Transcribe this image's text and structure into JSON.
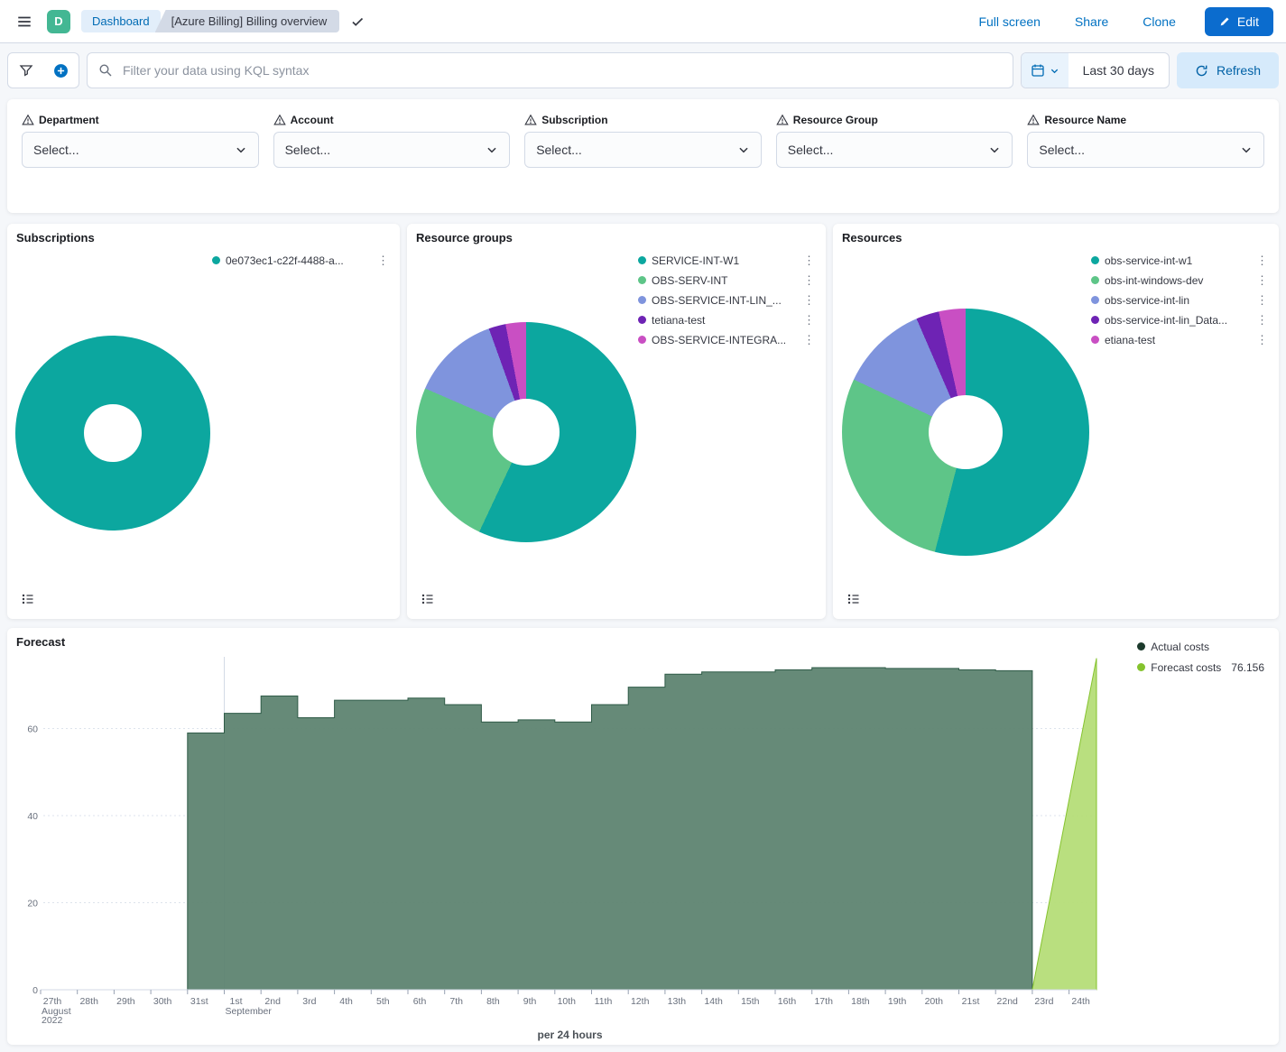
{
  "colors": {
    "accent_blue": "#0071c2",
    "edit_button": "#0b6cce",
    "space_avatar": "#43b793"
  },
  "header": {
    "space_initial": "D",
    "breadcrumb_dashboard": "Dashboard",
    "breadcrumb_page": "[Azure Billing] Billing overview",
    "full_screen": "Full screen",
    "share": "Share",
    "clone": "Clone",
    "edit": "Edit"
  },
  "toolbar": {
    "search_placeholder": "Filter your data using KQL syntax",
    "time_range": "Last 30 days",
    "refresh_label": "Refresh"
  },
  "filters": {
    "items": [
      {
        "label": "Department",
        "placeholder": "Select..."
      },
      {
        "label": "Account",
        "placeholder": "Select..."
      },
      {
        "label": "Subscription",
        "placeholder": "Select..."
      },
      {
        "label": "Resource Group",
        "placeholder": "Select..."
      },
      {
        "label": "Resource Name",
        "placeholder": "Select..."
      }
    ]
  },
  "chart_data": [
    {
      "id": "subscriptions",
      "type": "pie",
      "title": "Subscriptions",
      "unit": "percent",
      "slices": [
        {
          "label": "0e073ec1-c22f-4488-a...",
          "value": 100,
          "color": "#0ca79f"
        }
      ]
    },
    {
      "id": "resource_groups",
      "type": "pie",
      "title": "Resource groups",
      "unit": "percent",
      "slices": [
        {
          "label": "SERVICE-INT-W1",
          "value": 57,
          "color": "#0ca79f"
        },
        {
          "label": "OBS-SERV-INT",
          "value": 24.5,
          "color": "#5ec588"
        },
        {
          "label": "OBS-SERVICE-INT-LIN_...",
          "value": 13,
          "color": "#7f94dd"
        },
        {
          "label": "tetiana-test",
          "value": 2.5,
          "color": "#6e23b4"
        },
        {
          "label": "OBS-SERVICE-INTEGRA...",
          "value": 3,
          "color": "#c94fc3"
        }
      ]
    },
    {
      "id": "resources",
      "type": "pie",
      "title": "Resources",
      "unit": "percent",
      "slices": [
        {
          "label": "obs-service-int-w1",
          "value": 54,
          "color": "#0ca79f"
        },
        {
          "label": "obs-int-windows-dev",
          "value": 28,
          "color": "#5ec588"
        },
        {
          "label": "obs-service-int-lin",
          "value": 11.5,
          "color": "#7f94dd"
        },
        {
          "label": "obs-service-int-lin_Data...",
          "value": 3,
          "color": "#6e23b4"
        },
        {
          "label": "etiana-test",
          "value": 3.5,
          "color": "#c94fc3"
        }
      ]
    },
    {
      "id": "forecast",
      "type": "area",
      "title": "Forecast",
      "xlabel": "per 24 hours",
      "ylim": [
        0,
        76.2
      ],
      "y_ticks": [
        0,
        20,
        40,
        60
      ],
      "legend_position": "top-right",
      "x": [
        "27th",
        "28th",
        "29th",
        "30th",
        "31st",
        "1st",
        "2nd",
        "3rd",
        "4th",
        "5th",
        "6th",
        "7th",
        "8th",
        "9th",
        "10th",
        "11th",
        "12th",
        "13th",
        "14th",
        "15th",
        "16th",
        "17th",
        "18th",
        "19th",
        "20th",
        "21st",
        "22nd",
        "23rd",
        "24th"
      ],
      "x_sub_labels": [
        {
          "index": 0,
          "lines": [
            "August",
            "2022"
          ]
        },
        {
          "index": 5,
          "lines": [
            "September"
          ]
        }
      ],
      "series": [
        {
          "name": "Actual costs",
          "color": "#1c3a2c",
          "fill": "#5e8471",
          "stroke": "#2f5b47",
          "values": [
            null,
            null,
            null,
            null,
            59,
            63.5,
            67.5,
            62.5,
            66.5,
            66.5,
            67,
            65.5,
            61.5,
            62,
            61.5,
            65.5,
            69.5,
            72.5,
            73,
            73,
            73.5,
            74,
            74,
            73.8,
            73.8,
            73.5,
            73.3,
            null,
            null
          ]
        },
        {
          "name": "Forecast costs",
          "color": "#85c32e",
          "fill": "#b5dd78",
          "stroke": "#85c32e",
          "display_value": "76.156",
          "values": [
            null,
            null,
            null,
            null,
            null,
            null,
            null,
            null,
            null,
            null,
            null,
            null,
            null,
            null,
            null,
            null,
            null,
            null,
            null,
            null,
            null,
            null,
            null,
            null,
            null,
            null,
            null,
            0,
            76.156
          ]
        }
      ]
    }
  ]
}
